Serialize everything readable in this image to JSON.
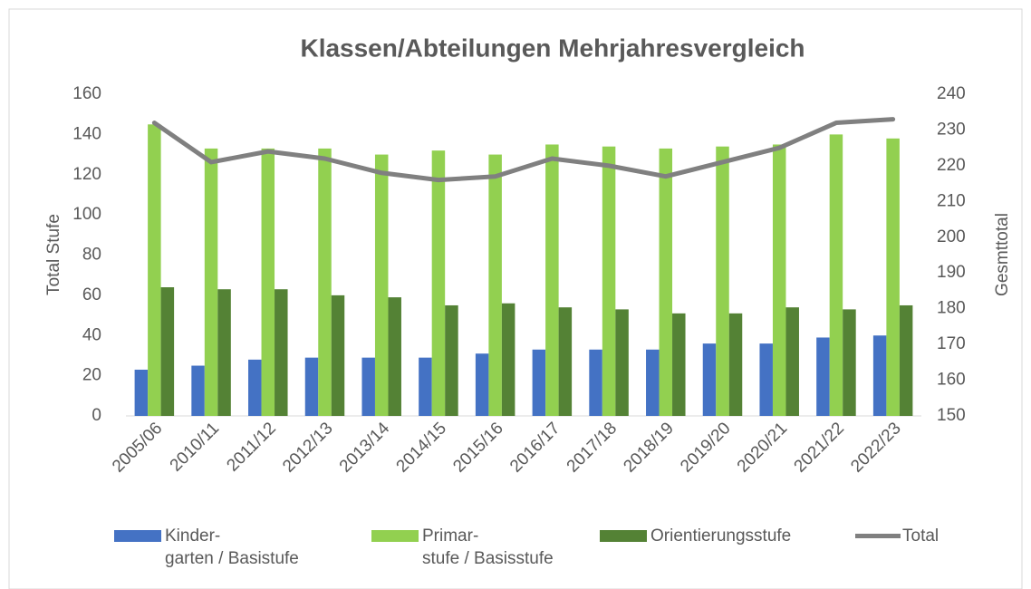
{
  "chart_data": {
    "type": "bar",
    "title": "Klassen/Abteilungen Mehrjahresvergleich",
    "y_label": "Total Stufe",
    "y2_label": "Gesmttotal",
    "categories": [
      "2005/06",
      "2010/11",
      "2011/12",
      "2012/13",
      "2013/14",
      "2014/15",
      "2015/16",
      "2016/17",
      "2017/18",
      "2018/19",
      "2019/20",
      "2020/21",
      "2021/22",
      "2022/23"
    ],
    "series": [
      {
        "name": "Kinder-\ngarten / Basistufe",
        "color": "#4472c4",
        "type": "bar",
        "values": [
          23,
          25,
          28,
          29,
          29,
          29,
          31,
          33,
          33,
          33,
          36,
          36,
          39,
          40
        ]
      },
      {
        "name": "Primar-\nstufe / Basisstufe",
        "color": "#92d050",
        "type": "bar",
        "values": [
          145,
          133,
          133,
          133,
          130,
          132,
          130,
          135,
          134,
          133,
          134,
          135,
          140,
          138
        ]
      },
      {
        "name": "Orientierungsstufe",
        "color": "#548235",
        "type": "bar",
        "values": [
          64,
          63,
          63,
          60,
          59,
          55,
          56,
          54,
          53,
          51,
          51,
          54,
          53,
          55
        ]
      },
      {
        "name": "Total",
        "color": "#808080",
        "type": "line",
        "axis": "y2",
        "values": [
          232,
          221,
          224,
          222,
          218,
          216,
          217,
          222,
          220,
          217,
          221,
          225,
          232,
          233
        ]
      }
    ],
    "ylim": [
      0,
      160
    ],
    "yticks": [
      0,
      20,
      40,
      60,
      80,
      100,
      120,
      140,
      160
    ],
    "y2lim": [
      150,
      240
    ],
    "y2ticks": [
      150,
      160,
      170,
      180,
      190,
      200,
      210,
      220,
      230,
      240
    ],
    "legend": "bottom"
  }
}
